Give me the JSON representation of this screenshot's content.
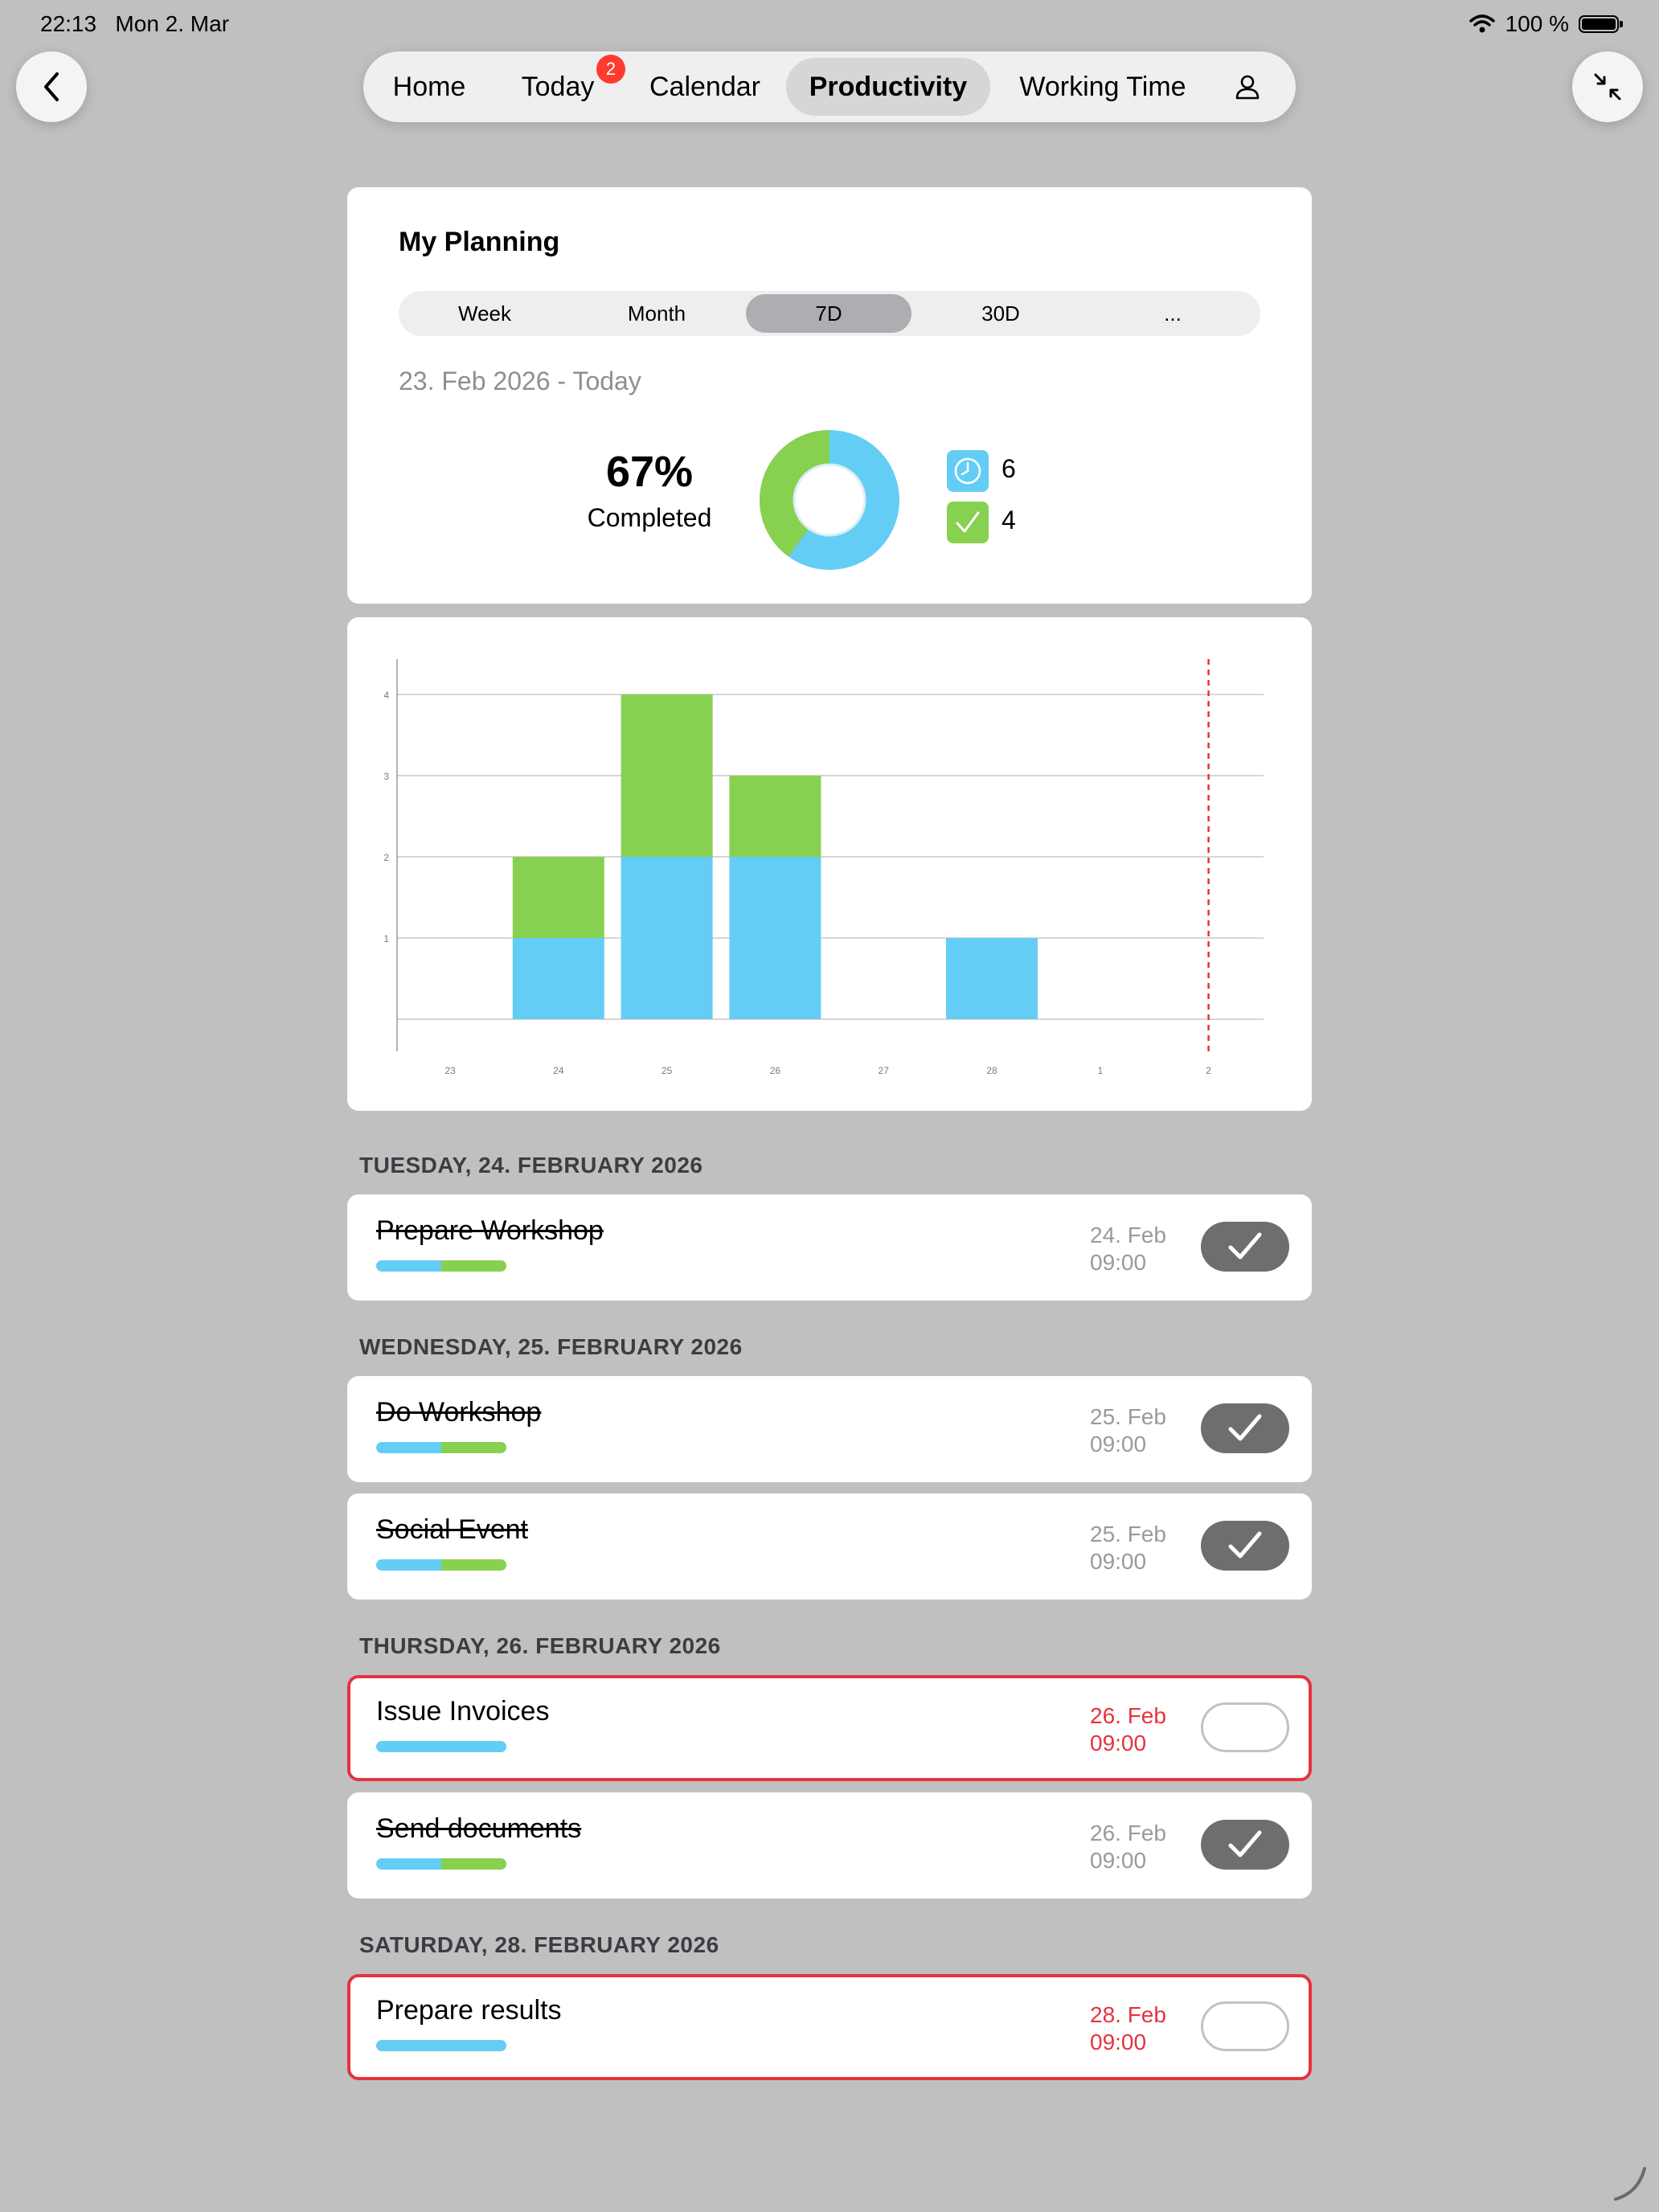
{
  "status_bar": {
    "time": "22:13",
    "date": "Mon 2. Mar",
    "battery": "100 %"
  },
  "nav": {
    "items": [
      {
        "label": "Home",
        "active": false
      },
      {
        "label": "Today",
        "active": false,
        "badge": "2"
      },
      {
        "label": "Calendar",
        "active": false
      },
      {
        "label": "Productivity",
        "active": true
      },
      {
        "label": "Working Time",
        "active": false
      }
    ]
  },
  "planning": {
    "title": "My Planning",
    "segments": [
      "Week",
      "Month",
      "7D",
      "30D",
      "..."
    ],
    "selected_segment": "7D",
    "date_range": "23. Feb 2026 - Today",
    "percent": "67%",
    "percent_label": "Completed",
    "open_count": "6",
    "done_count": "4",
    "colors": {
      "open": "#64cdf5",
      "done": "#88d04f"
    }
  },
  "chart_data": {
    "type": "bar",
    "stacked": true,
    "categories": [
      "23",
      "24",
      "25",
      "26",
      "27",
      "28",
      "1",
      "2"
    ],
    "series": [
      {
        "values": [
          0,
          1,
          2,
          2,
          0,
          1,
          0,
          0
        ],
        "color": "#64cdf5"
      },
      {
        "values": [
          0,
          1,
          2,
          1,
          0,
          0,
          0,
          0
        ],
        "color": "#88d04f"
      }
    ],
    "yticks": [
      "1",
      "2",
      "3",
      "4"
    ],
    "ylim": [
      0,
      4
    ],
    "today_marker": "2",
    "grid": true
  },
  "sections": [
    {
      "heading": "TUESDAY, 24. FEBRUARY 2026",
      "tasks": [
        {
          "title": "Prepare Workshop",
          "date": "24. Feb",
          "time": "09:00",
          "done": true,
          "overdue": false
        }
      ]
    },
    {
      "heading": "WEDNESDAY, 25. FEBRUARY 2026",
      "tasks": [
        {
          "title": "Do Workshop",
          "date": "25. Feb",
          "time": "09:00",
          "done": true,
          "overdue": false
        },
        {
          "title": "Social Event",
          "date": "25. Feb",
          "time": "09:00",
          "done": true,
          "overdue": false
        }
      ]
    },
    {
      "heading": "THURSDAY, 26. FEBRUARY 2026",
      "tasks": [
        {
          "title": "Issue Invoices",
          "date": "26. Feb",
          "time": "09:00",
          "done": false,
          "overdue": true
        },
        {
          "title": "Send documents",
          "date": "26. Feb",
          "time": "09:00",
          "done": true,
          "overdue": false
        }
      ]
    },
    {
      "heading": "SATURDAY, 28. FEBRUARY 2026",
      "tasks": [
        {
          "title": "Prepare results",
          "date": "28. Feb",
          "time": "09:00",
          "done": false,
          "overdue": true
        }
      ]
    }
  ]
}
